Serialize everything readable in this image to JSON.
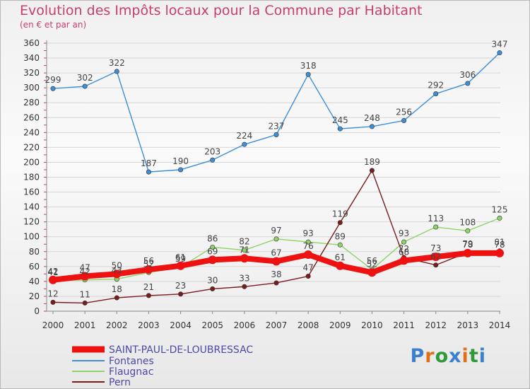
{
  "title": "Evolution des Impôts locaux pour la Commune par Habitant",
  "subtitle": "(en € et par an)",
  "logo": {
    "text": "Proxiti",
    "colors": [
      "#3a7fd0",
      "#e0701a",
      "#2f9a3a",
      "#3a7fd0",
      "#e0701a",
      "#2f9a3a",
      "#3a7fd0"
    ]
  },
  "chart_data": {
    "type": "line",
    "title": "Evolution des Impôts locaux pour la Commune par Habitant",
    "subtitle": "(en € et par an)",
    "xlabel": "",
    "ylabel": "",
    "ylim": [
      0,
      360
    ],
    "ytick_step": 20,
    "grid": "horizontal",
    "categories": [
      "2000",
      "2001",
      "2002",
      "2003",
      "2004",
      "2005",
      "2006",
      "2007",
      "2008",
      "2009",
      "2010",
      "2011",
      "2012",
      "2013",
      "2014"
    ],
    "series": [
      {
        "name": "SAINT-PAUL-DE-LOUBRESSAC",
        "color": "#ee1111",
        "values": [
          42,
          47,
          50,
          56,
          61,
          69,
          71,
          67,
          76,
          61,
          52,
          68,
          73,
          78,
          78
        ],
        "labels": [
          "42",
          "47",
          "50",
          "56",
          "61",
          "69",
          "71",
          "67",
          "76",
          "61",
          "52",
          "68",
          "73",
          "78",
          "78"
        ]
      },
      {
        "name": "Fontanes",
        "color": "#3e8fd6",
        "values": [
          299,
          302,
          322,
          187,
          190,
          203,
          224,
          237,
          318,
          245,
          248,
          256,
          292,
          306,
          347
        ],
        "labels": [
          "299",
          "302",
          "322",
          "187",
          "190",
          "203",
          "224",
          "237",
          "318",
          "245",
          "248",
          "256",
          "292",
          "306",
          "347"
        ]
      },
      {
        "name": "Flaugnac",
        "color": "#8fd36a",
        "values": [
          41,
          42,
          43,
          52,
          59,
          86,
          82,
          97,
          93,
          89,
          56,
          93,
          113,
          108,
          125
        ],
        "labels": [
          "41",
          "42",
          "43",
          "52",
          "59",
          "86",
          "82",
          "97",
          "93",
          "89",
          "56",
          "93",
          "113",
          "108",
          "125"
        ]
      },
      {
        "name": "Pern",
        "color": "#7a1c1c",
        "values": [
          12,
          11,
          18,
          21,
          23,
          30,
          33,
          38,
          47,
          119,
          189,
          72,
          62,
          79,
          81
        ],
        "labels": [
          "12",
          "11",
          "18",
          "21",
          "23",
          "30",
          "33",
          "38",
          "47",
          "119",
          "189",
          "72",
          "62",
          "79",
          "81"
        ]
      }
    ],
    "legend_position": "bottom-left"
  }
}
